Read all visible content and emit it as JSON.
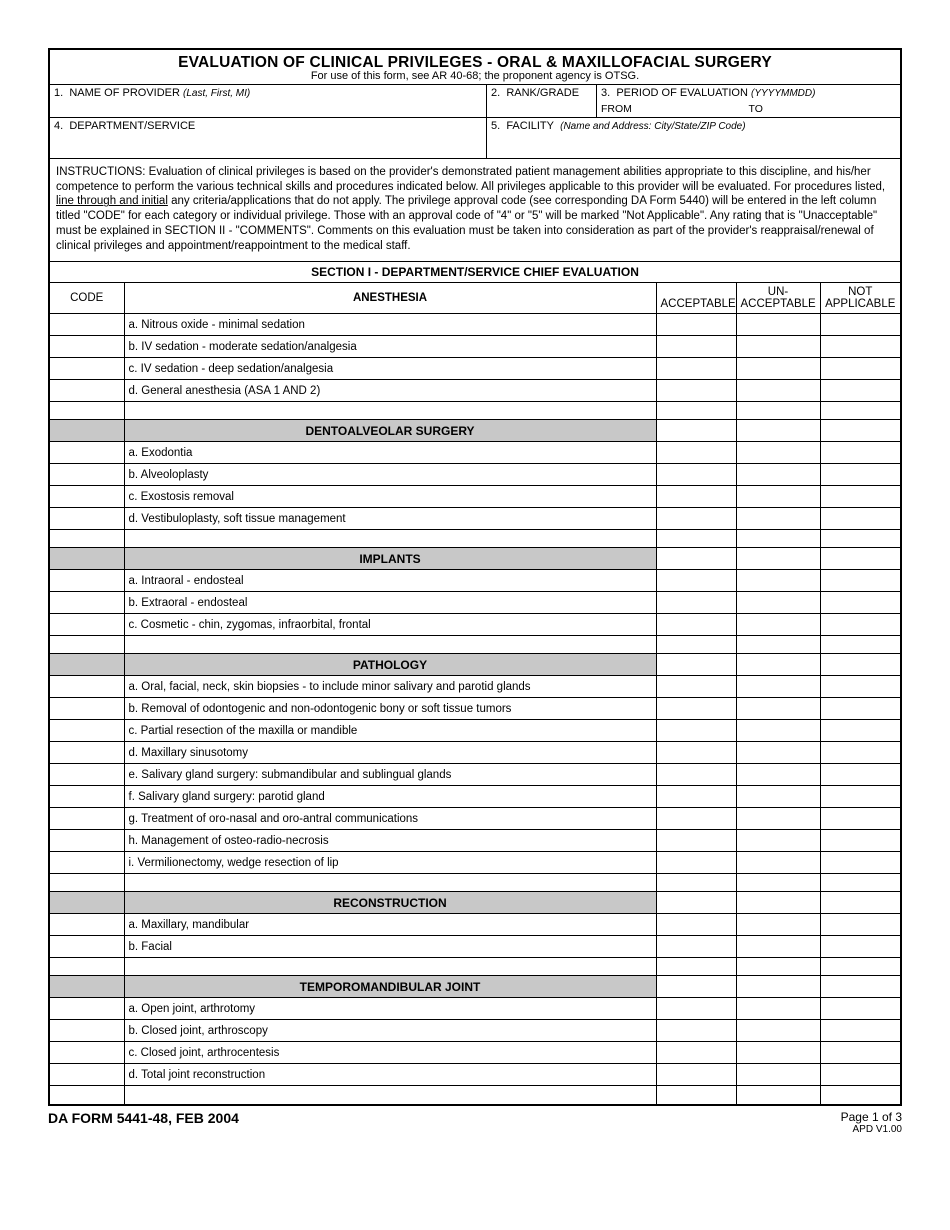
{
  "title": "EVALUATION OF CLINICAL PRIVILEGES - ORAL & MAXILLOFACIAL SURGERY",
  "subtitle": "For use of this form, see AR 40-68; the proponent agency is OTSG.",
  "header": {
    "field1": {
      "num": "1.",
      "label": "NAME OF PROVIDER",
      "note": "(Last, First, MI)"
    },
    "field2": {
      "num": "2.",
      "label": "RANK/GRADE"
    },
    "field3": {
      "num": "3.",
      "label": "PERIOD OF EVALUATION",
      "note": "(YYYYMMDD)",
      "from": "FROM",
      "to": "TO"
    },
    "field4": {
      "num": "4.",
      "label": "DEPARTMENT/SERVICE"
    },
    "field5": {
      "num": "5.",
      "label": "FACILITY",
      "note": "(Name and Address:  City/State/ZIP Code)"
    }
  },
  "instructions_label": "INSTRUCTIONS:",
  "instructions_body": "  Evaluation of clinical privileges is based on the provider's demonstrated patient management abilities appropriate to this discipline, and his/her competence to perform the various technical skills and procedures indicated below.  All privileges applicable to this provider will be evaluated.  For procedures listed, ",
  "instructions_underlined": "line through and initial",
  "instructions_body2": " any criteria/applications that do not apply.  The privilege approval code (see corresponding DA Form 5440) will be entered in the left column titled \"CODE\" for each category or individual privilege.  Those with an approval code of \"4\" or \"5\" will be marked \"Not Applicable\".  Any rating that is \"Unacceptable\" must be explained in SECTION II - \"COMMENTS\".  Comments on this evaluation must be taken into consideration as part of the provider's reappraisal/renewal of clinical privileges and appointment/reappointment to the medical staff.",
  "section1_title": "SECTION I - DEPARTMENT/SERVICE CHIEF EVALUATION",
  "columns": {
    "code": "CODE",
    "first_category": "ANESTHESIA",
    "acceptable": "ACCEPTABLE",
    "unacceptable_l1": "UN-",
    "unacceptable_l2": "ACCEPTABLE",
    "not_l1": "NOT",
    "not_l2": "APPLICABLE"
  },
  "sections": [
    {
      "name": "ANESTHESIA",
      "header_in_thead": true,
      "items": [
        "a.  Nitrous oxide - minimal sedation",
        "b.  IV sedation - moderate sedation/analgesia",
        "c.  IV sedation - deep sedation/analgesia",
        "d.  General anesthesia (ASA 1 AND 2)"
      ]
    },
    {
      "name": "DENTOALVEOLAR SURGERY",
      "items": [
        "a.  Exodontia",
        "b.  Alveoloplasty",
        "c.  Exostosis removal",
        "d.  Vestibuloplasty, soft tissue management"
      ]
    },
    {
      "name": "IMPLANTS",
      "items": [
        "a.  Intraoral - endosteal",
        "b.  Extraoral - endosteal",
        "c.  Cosmetic - chin, zygomas, infraorbital, frontal"
      ]
    },
    {
      "name": "PATHOLOGY",
      "items": [
        "a.  Oral, facial, neck, skin biopsies - to include minor salivary and parotid glands",
        "b.  Removal of odontogenic and non-odontogenic bony or soft tissue tumors",
        "c.  Partial resection of the maxilla or mandible",
        "d.  Maxillary sinusotomy",
        "e.  Salivary gland surgery: submandibular and sublingual glands",
        "f.   Salivary gland surgery: parotid gland",
        "g.  Treatment of oro-nasal and oro-antral communications",
        "h.  Management of osteo-radio-necrosis",
        "i.   Vermilionectomy, wedge resection of lip"
      ]
    },
    {
      "name": "RECONSTRUCTION",
      "items": [
        "a.  Maxillary, mandibular",
        "b.  Facial"
      ]
    },
    {
      "name": "TEMPOROMANDIBULAR JOINT",
      "items": [
        "a.  Open joint, arthrotomy",
        "b.  Closed joint, arthroscopy",
        "c.  Closed joint, arthrocentesis",
        "d.  Total joint reconstruction"
      ]
    }
  ],
  "footer": {
    "form_id": "DA FORM 5441-48, FEB 2004",
    "page": "Page 1 of 3",
    "apd": "APD V1.00"
  },
  "colors": {
    "category_bg": "#c8c8c8",
    "border": "#000000",
    "text": "#000000",
    "background": "#ffffff"
  },
  "fonts": {
    "base_family": "Arial",
    "title_pt": 15.5,
    "body_pt": 11.5,
    "small_pt": 10,
    "header_label_pt": 11
  }
}
